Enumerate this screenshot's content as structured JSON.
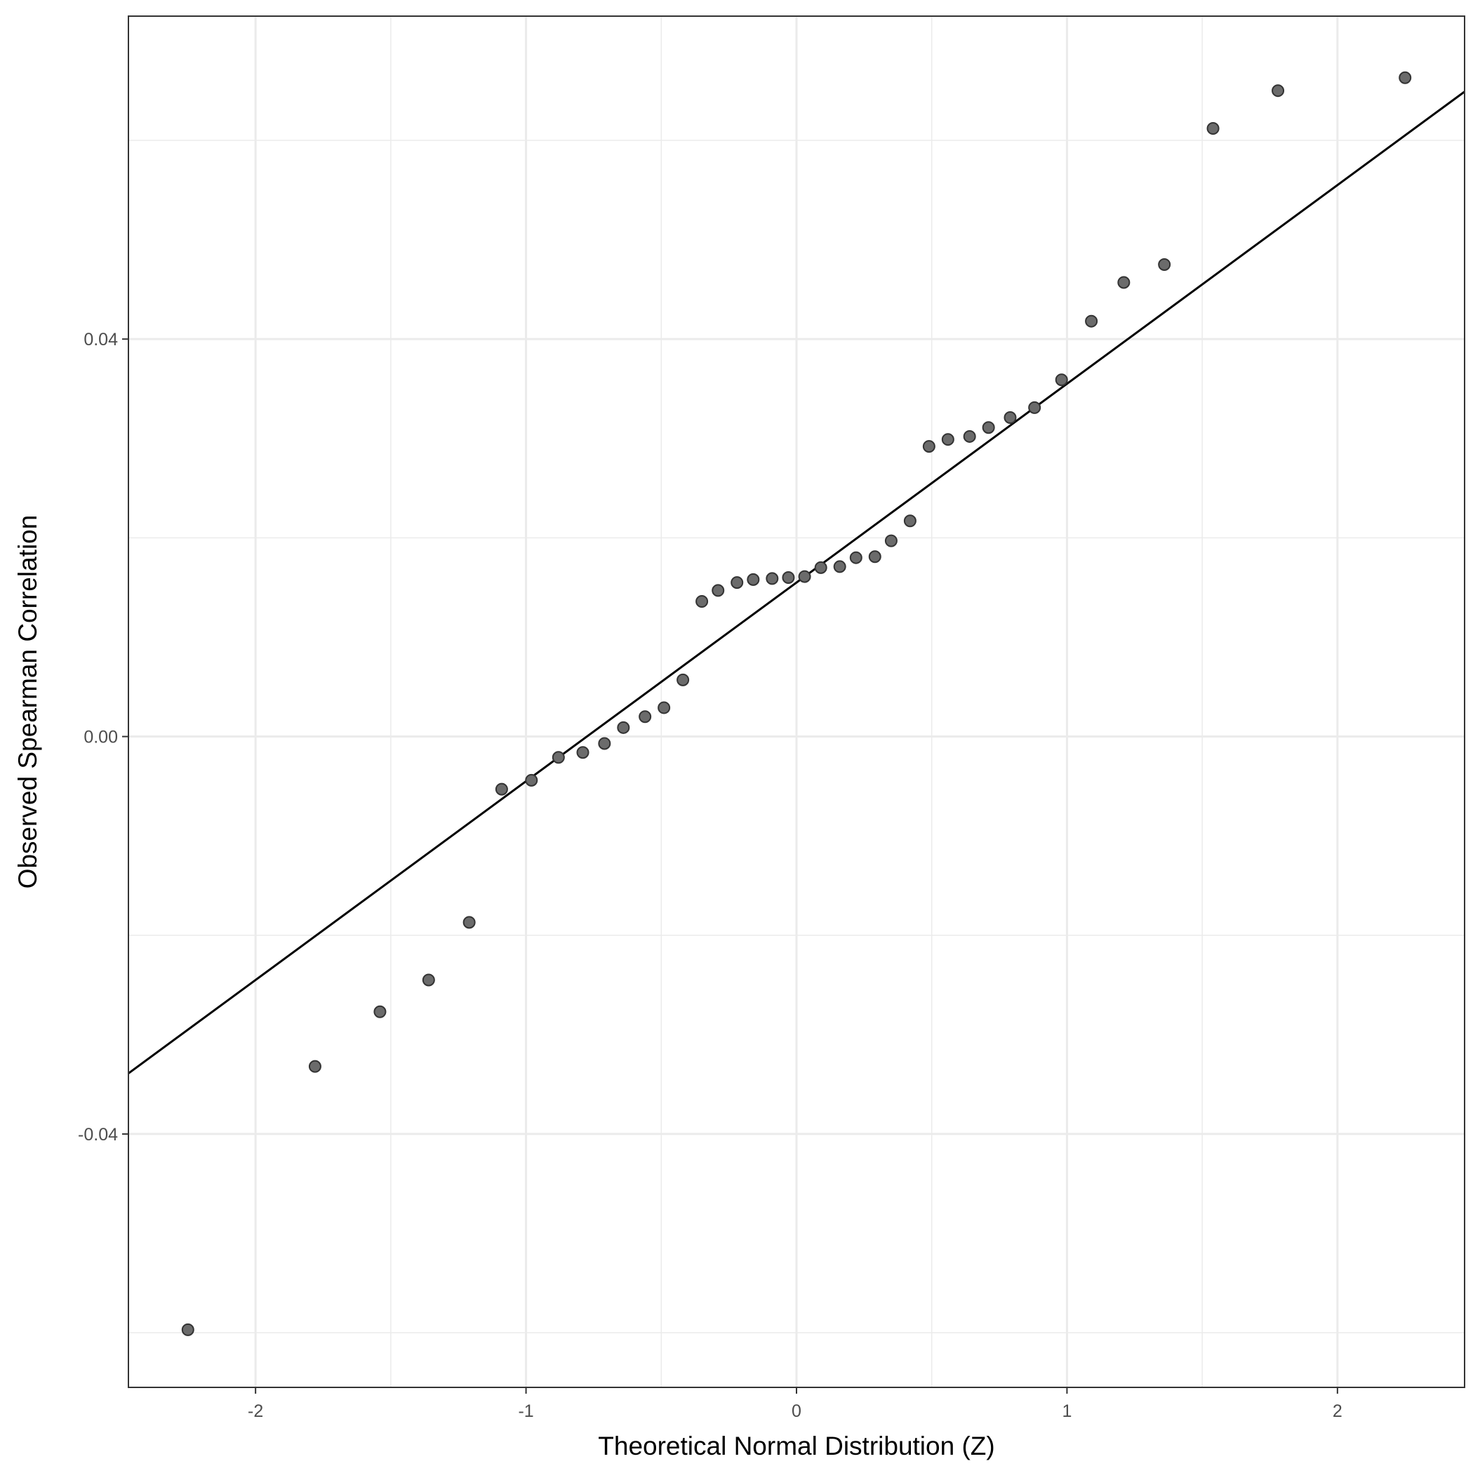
{
  "chart_data": {
    "type": "scatter",
    "title": "",
    "xlabel": "Theoretical Normal Distribution (Z)",
    "ylabel": "Observed Spearman Correlation",
    "xlim": [
      -2.47,
      2.47
    ],
    "ylim": [
      -0.0655,
      0.0725
    ],
    "x_ticks": [
      -2,
      -1,
      0,
      1,
      2
    ],
    "x_tick_labels": [
      "-2",
      "-1",
      "0",
      "1",
      "2"
    ],
    "y_ticks": [
      -0.04,
      0.0,
      0.04
    ],
    "y_tick_labels": [
      "-0.04",
      "0.00",
      "0.04"
    ],
    "x_minor_gridlines": [
      -1.5,
      -0.5,
      0.5,
      1.5
    ],
    "y_minor_gridlines": [
      -0.06,
      -0.02,
      0.02,
      0.06
    ],
    "grid": true,
    "legend": "none",
    "colors": {
      "point_fill": "#6b6b6b",
      "point_stroke": "#333333",
      "line": "#000000",
      "grid": "#ebebeb",
      "panel_border": "#333333"
    },
    "reference_line": {
      "slope": 0.02,
      "intercept": 0.0155
    },
    "points": [
      {
        "x": -2.25,
        "y": -0.0597
      },
      {
        "x": -1.78,
        "y": -0.0332
      },
      {
        "x": -1.54,
        "y": -0.0277
      },
      {
        "x": -1.36,
        "y": -0.0245
      },
      {
        "x": -1.21,
        "y": -0.0187
      },
      {
        "x": -1.09,
        "y": -0.0053
      },
      {
        "x": -0.98,
        "y": -0.0044
      },
      {
        "x": -0.88,
        "y": -0.0021
      },
      {
        "x": -0.79,
        "y": -0.0016
      },
      {
        "x": -0.71,
        "y": -0.0007
      },
      {
        "x": -0.64,
        "y": 0.0009
      },
      {
        "x": -0.56,
        "y": 0.002
      },
      {
        "x": -0.49,
        "y": 0.0029
      },
      {
        "x": -0.42,
        "y": 0.0057
      },
      {
        "x": -0.35,
        "y": 0.0136
      },
      {
        "x": -0.29,
        "y": 0.0147
      },
      {
        "x": -0.22,
        "y": 0.0155
      },
      {
        "x": -0.16,
        "y": 0.0158
      },
      {
        "x": -0.09,
        "y": 0.0159
      },
      {
        "x": -0.03,
        "y": 0.016
      },
      {
        "x": 0.03,
        "y": 0.0161
      },
      {
        "x": 0.09,
        "y": 0.017
      },
      {
        "x": 0.16,
        "y": 0.0171
      },
      {
        "x": 0.22,
        "y": 0.018
      },
      {
        "x": 0.29,
        "y": 0.0181
      },
      {
        "x": 0.35,
        "y": 0.0197
      },
      {
        "x": 0.42,
        "y": 0.0217
      },
      {
        "x": 0.49,
        "y": 0.0292
      },
      {
        "x": 0.56,
        "y": 0.0299
      },
      {
        "x": 0.64,
        "y": 0.0302
      },
      {
        "x": 0.71,
        "y": 0.0311
      },
      {
        "x": 0.79,
        "y": 0.0321
      },
      {
        "x": 0.88,
        "y": 0.0331
      },
      {
        "x": 0.98,
        "y": 0.0359
      },
      {
        "x": 1.09,
        "y": 0.0418
      },
      {
        "x": 1.21,
        "y": 0.0457
      },
      {
        "x": 1.36,
        "y": 0.0475
      },
      {
        "x": 1.54,
        "y": 0.0612
      },
      {
        "x": 1.78,
        "y": 0.065
      },
      {
        "x": 2.25,
        "y": 0.0663
      }
    ]
  }
}
